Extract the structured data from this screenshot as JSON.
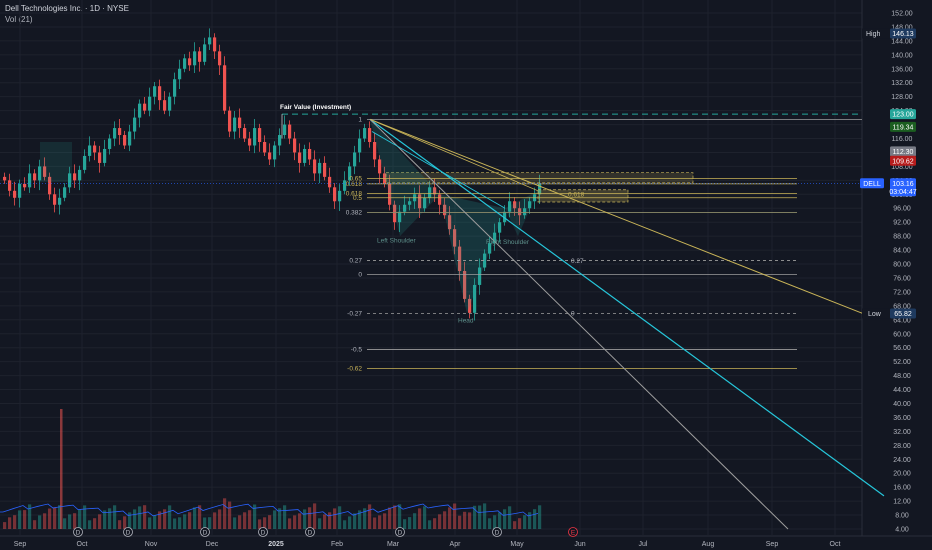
{
  "header": {
    "title": "Dell Technologies Inc. · 1D · NYSE",
    "volume_label": "Vol (21)"
  },
  "chart_data": {
    "type": "candlestick",
    "title": "Dell Technologies Inc. · 1D · NYSE",
    "ylim": [
      4,
      152
    ],
    "y_ticks": [
      "152.00",
      "148.00",
      "144.00",
      "140.00",
      "136.00",
      "132.00",
      "128.00",
      "124.00",
      "120.00",
      "116.00",
      "112.00",
      "108.00",
      "104.00",
      "100.00",
      "96.00",
      "92.00",
      "88.00",
      "84.00",
      "80.00",
      "76.00",
      "72.00",
      "68.00",
      "64.00",
      "60.00",
      "56.00",
      "52.00",
      "48.00",
      "44.00",
      "40.00",
      "36.00",
      "32.00",
      "28.00",
      "24.00",
      "20.00",
      "16.00",
      "12.00",
      "8.00",
      "4.00"
    ],
    "x_ticks": [
      "Sep",
      "Oct",
      "Nov",
      "Dec",
      "2025",
      "Feb",
      "Mar",
      "Apr",
      "May",
      "Jun",
      "Jul",
      "Aug",
      "Sep",
      "Oct"
    ],
    "closes": [
      104,
      101,
      99,
      103,
      102,
      106,
      104,
      108,
      105,
      100,
      97,
      99,
      102,
      106,
      104,
      107,
      111,
      114,
      112,
      109,
      113,
      116,
      119,
      117,
      114,
      118,
      122,
      126,
      124,
      128,
      131,
      127,
      124,
      128,
      133,
      136,
      139,
      137,
      141,
      138,
      143,
      145,
      141,
      137,
      124,
      118,
      122,
      119,
      116,
      114,
      119,
      115,
      112,
      110,
      114,
      117,
      120,
      116,
      112,
      109,
      113,
      110,
      106,
      109,
      105,
      102,
      98,
      101,
      104,
      108,
      112,
      116,
      119,
      115,
      110,
      106,
      103,
      97,
      92,
      95,
      97,
      98,
      100,
      96,
      99,
      102,
      100,
      97,
      94,
      90,
      85,
      78,
      70,
      66,
      74,
      79,
      83,
      86,
      89,
      92,
      95,
      98,
      96,
      94,
      96,
      98,
      100,
      103
    ],
    "last_volume_spike": 40,
    "series": [
      {
        "name": "DELL",
        "last": 103.16
      }
    ],
    "price_tags": {
      "high_label": "High",
      "high_value": "146.13",
      "low_label": "Low",
      "low_value": "65.82",
      "fair_value": "123.00",
      "t1": "119.34",
      "t2": "112.30",
      "t3": "109.62",
      "symbol": "DELL",
      "last_price": "103.16",
      "countdown": "03:04:47"
    },
    "fib_levels": [
      {
        "label": "1",
        "price": 121.5
      },
      {
        "label": "0.65",
        "price": 104.5
      },
      {
        "label": "0.618",
        "price": 103.0
      },
      {
        "label": "0.618",
        "price": 100.2
      },
      {
        "label": "0.5",
        "price": 99.0
      },
      {
        "label": "0.382",
        "price": 94.8
      },
      {
        "label": "0.27",
        "price": 81.0
      },
      {
        "label": "0",
        "price": 77.0
      },
      {
        "label": "-0.27",
        "price": 65.8
      },
      {
        "label": "-0.5",
        "price": 55.5
      },
      {
        "label": "-0.62",
        "price": 50.0
      }
    ],
    "right_labels": [
      {
        "label": "0.618",
        "price": 100.0
      },
      {
        "label": "0.27",
        "price": 80.9
      },
      {
        "label": "0",
        "price": 65.8
      }
    ],
    "annotations": {
      "fair_value": "Fair Value (Investment)",
      "left_shoulder": "Left Shoulder",
      "head": "Head",
      "right_shoulder": "Right Shoulder"
    },
    "events": [
      "D",
      "D",
      "D",
      "D",
      "D",
      "D",
      "D",
      "E"
    ],
    "colors": {
      "up": "#26a69a",
      "down": "#ef5350",
      "bg": "#131722",
      "fib_gold": "#c9b458",
      "cyan": "#26c6da",
      "grey_line": "#9e9e9e",
      "dashed_green": "#26a69a",
      "dell_blue": "#2962ff"
    }
  }
}
